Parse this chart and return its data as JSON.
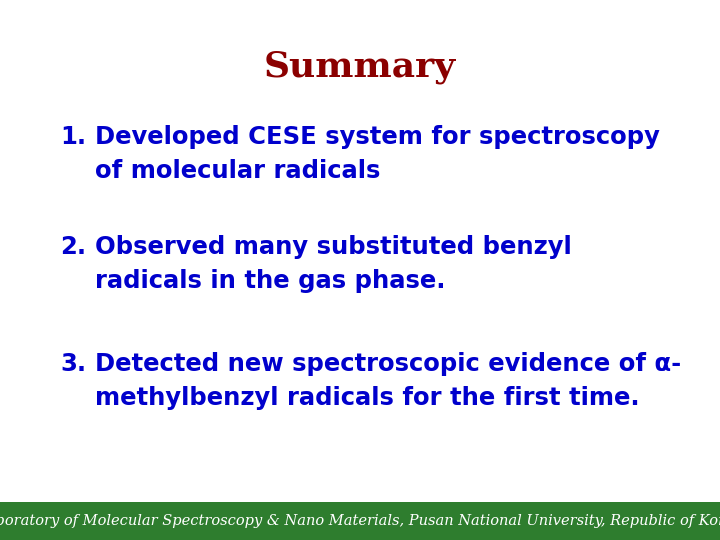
{
  "title": "Summary",
  "title_color": "#8B0000",
  "title_fontsize": 26,
  "items": [
    {
      "number": "1.",
      "line1": "Developed CESE system for spectroscopy",
      "line2": "of molecular radicals"
    },
    {
      "number": "2.",
      "line1": "Observed many substituted benzyl",
      "line2": "radicals in the gas phase."
    },
    {
      "number": "3.",
      "line1": "Detected new spectroscopic evidence of α-",
      "line2": "methylbenzyl radicals for the first time."
    }
  ],
  "text_color": "#0000CC",
  "text_fontsize": 17.5,
  "footer_text": "Laboratory of Molecular Spectroscopy & Nano Materials, Pusan National University, Republic of Korea",
  "footer_color": "#FFFFFF",
  "footer_bg_color": "#2E7D2E",
  "footer_fontsize": 10.5,
  "bg_color": "#FFFFFF",
  "fig_width": 7.2,
  "fig_height": 5.4,
  "dpi": 100
}
